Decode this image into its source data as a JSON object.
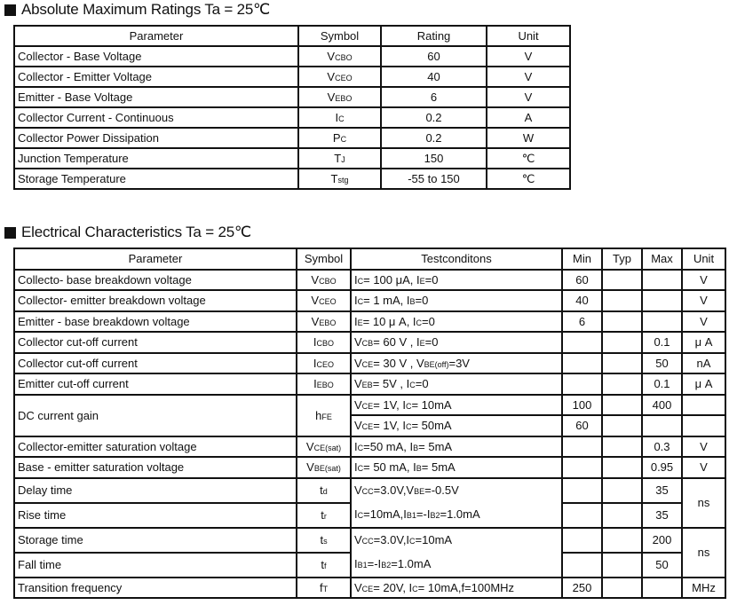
{
  "heading1": "Absolute Maximum Ratings Ta = 25℃",
  "heading2": "Electrical Characteristics Ta = 25℃",
  "t1": {
    "headers": [
      "Parameter",
      "Symbol",
      "Rating",
      "Unit"
    ],
    "rows": [
      {
        "param": "Collector - Base Voltage",
        "symbol": [
          "V",
          "CBO"
        ],
        "rating": "60",
        "unit": "V"
      },
      {
        "param": "Collector - Emitter Voltage",
        "symbol": [
          "V",
          "CEO"
        ],
        "rating": "40",
        "unit": "V"
      },
      {
        "param": "Emitter - Base Voltage",
        "symbol": [
          "V",
          "EBO"
        ],
        "rating": "6",
        "unit": "V"
      },
      {
        "param": "Collector Current  - Continuous",
        "symbol": [
          "I",
          "C"
        ],
        "rating": "0.2",
        "unit": "A"
      },
      {
        "param": "Collector Power Dissipation",
        "symbol": [
          "P",
          "C"
        ],
        "rating": "0.2",
        "unit": "W"
      },
      {
        "param": "Junction Temperature",
        "symbol": [
          "T",
          "J"
        ],
        "rating": "150",
        "unit": "℃"
      },
      {
        "param": "Storage Temperature",
        "symbol": [
          "T",
          "stg"
        ],
        "rating": "-55 to 150",
        "unit": "℃"
      }
    ]
  },
  "t2": {
    "headers": [
      "Parameter",
      "Symbol",
      "Testconditons",
      "Min",
      "Typ",
      "Max",
      "Unit"
    ],
    "rows": [
      {
        "param": "Collecto- base breakdown voltage",
        "symbol": [
          "V",
          "CBO"
        ],
        "test": [
          "I",
          "C",
          "= 100 μA,   I",
          "E",
          "=0"
        ],
        "min": "60",
        "typ": "",
        "max": "",
        "unit": "V"
      },
      {
        "param": "Collector- emitter breakdown voltage",
        "symbol": [
          "V",
          "CEO"
        ],
        "test": [
          "I",
          "C",
          "= 1 mA,   I",
          "B",
          "=0"
        ],
        "min": "40",
        "typ": "",
        "max": "",
        "unit": "V"
      },
      {
        "param": "Emitter - base breakdown voltage",
        "symbol": [
          "V",
          "EBO"
        ],
        "test": [
          "I",
          "E",
          "= 10 μ A,   I",
          "C",
          "=0"
        ],
        "min": "6",
        "typ": "",
        "max": "",
        "unit": "V"
      },
      {
        "param": "Collector cut-off current",
        "symbol": [
          "I",
          "CBO"
        ],
        "test": [
          "V",
          "CB",
          "= 60 V , I",
          "E",
          "=0"
        ],
        "min": "",
        "typ": "",
        "max": "0.1",
        "unit": "μ A"
      },
      {
        "param": "Collector cut-off current",
        "symbol": [
          "I",
          "CEO"
        ],
        "test": [
          "V",
          "CE",
          "= 30 V , V",
          "BE(off)",
          "=3V"
        ],
        "min": "",
        "typ": "",
        "max": "50",
        "unit": "nA"
      },
      {
        "param": "Emitter cut-off current",
        "symbol": [
          "I",
          "EBO"
        ],
        "test": [
          "V",
          "EB",
          "= 5V , I",
          "C",
          "=0"
        ],
        "min": "",
        "typ": "",
        "max": "0.1",
        "unit": "μ A"
      },
      {
        "param": "DC current gain",
        "symbol": [
          "h",
          "FE"
        ],
        "lines": [
          {
            "test": [
              "V",
              "CE",
              "= 1V, I",
              "C",
              "= 10mA"
            ],
            "min": "100",
            "typ": "",
            "max": "400",
            "unit": ""
          },
          {
            "test": [
              "V",
              "CE",
              "= 1V, I",
              "C",
              "= 50mA"
            ],
            "min": "60",
            "typ": "",
            "max": "",
            "unit": ""
          }
        ]
      },
      {
        "param": "Collector-emitter saturation voltage",
        "symbol": [
          "V",
          "CE(sat)"
        ],
        "test": [
          "I",
          "C",
          "=50 mA, I",
          "B",
          "= 5mA"
        ],
        "min": "",
        "typ": "",
        "max": "0.3",
        "unit": "V"
      },
      {
        "param": "Base - emitter saturation voltage",
        "symbol": [
          "V",
          "BE(sat)"
        ],
        "test": [
          "I",
          "C",
          "= 50 mA, I",
          "B",
          "= 5mA"
        ],
        "min": "",
        "typ": "",
        "max": "0.95",
        "unit": "V"
      },
      {
        "group": true,
        "test_lines": [
          [
            "V",
            "CC",
            "=3.0V,V",
            "BE",
            "=-0.5V"
          ],
          [
            "I",
            "C",
            "=10mA,I",
            "B1",
            "=-I",
            "B2",
            "=1.0mA"
          ]
        ],
        "unit": "ns",
        "items": [
          {
            "param": "Delay time",
            "symbol": [
              "t",
              "d"
            ],
            "min": "",
            "typ": "",
            "max": "35"
          },
          {
            "param": "Rise time",
            "symbol": [
              "t",
              "r"
            ],
            "min": "",
            "typ": "",
            "max": "35"
          }
        ]
      },
      {
        "group": true,
        "test_lines": [
          [
            "V",
            "CC",
            "=3.0V,I",
            "C",
            "=10mA"
          ],
          [
            "I",
            "B1",
            "=-I",
            "B2",
            "=1.0mA"
          ]
        ],
        "unit": "ns",
        "items": [
          {
            "param": "Storage time",
            "symbol": [
              "t",
              "s"
            ],
            "min": "",
            "typ": "",
            "max": "200"
          },
          {
            "param": "Fall time",
            "symbol": [
              "t",
              "f"
            ],
            "min": "",
            "typ": "",
            "max": "50"
          }
        ]
      },
      {
        "param": "Transition frequency",
        "symbol": [
          "f",
          "T"
        ],
        "test": [
          "V",
          "CE",
          "= 20V, I",
          "C",
          "= 10mA,f=100MHz"
        ],
        "min": "250",
        "typ": "",
        "max": "",
        "unit": "MHz"
      }
    ]
  }
}
